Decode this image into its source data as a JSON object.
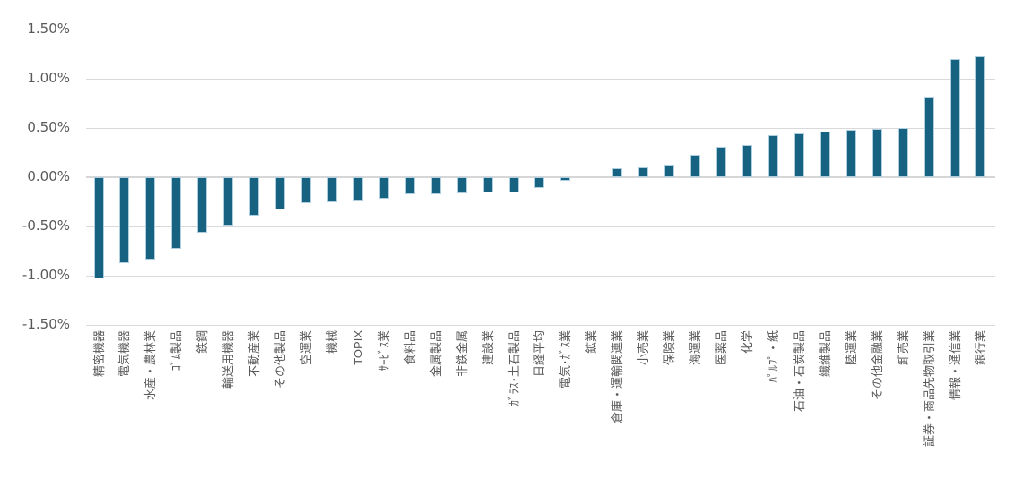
{
  "chart_data": {
    "type": "bar",
    "title": "",
    "xlabel": "",
    "ylabel": "",
    "ylim": [
      -1.5,
      1.5
    ],
    "grid": true,
    "legend": "none",
    "value_unit": "%",
    "yticks": [
      "1.50%",
      "1.00%",
      "0.50%",
      "0.00%",
      "-0.50%",
      "-1.00%",
      "-1.50%"
    ],
    "categories": [
      "精密機器",
      "電気機器",
      "水産・農林業",
      "ｺﾞﾑ製品",
      "鉄鋼",
      "輸送用機器",
      "不動産業",
      "その他製品",
      "空運業",
      "機械",
      "TOPIX",
      "ｻｰﾋﾞｽ業",
      "食料品",
      "金属製品",
      "非鉄金属",
      "建設業",
      "ｶﾞﾗｽ･土石製品",
      "日経平均",
      "電気･ｶﾞｽ業",
      "鉱業",
      "倉庫・運輸関連業",
      "小売業",
      "保険業",
      "海運業",
      "医薬品",
      "化学",
      "ﾊﾟﾙﾌﾟ・紙",
      "石油・石炭製品",
      "繊維製品",
      "陸運業",
      "その他金融業",
      "卸売業",
      "証券・商品先物取引業",
      "情報・通信業",
      "銀行業"
    ],
    "values": [
      -1.03,
      -0.87,
      -0.84,
      -0.73,
      -0.56,
      -0.49,
      -0.39,
      -0.33,
      -0.26,
      -0.25,
      -0.24,
      -0.22,
      -0.17,
      -0.17,
      -0.16,
      -0.15,
      -0.15,
      -0.11,
      -0.04,
      0.0,
      0.09,
      0.1,
      0.13,
      0.23,
      0.31,
      0.33,
      0.43,
      0.45,
      0.46,
      0.48,
      0.49,
      0.5,
      0.82,
      1.2,
      1.23
    ],
    "colors": {
      "bar_fill": "#176181",
      "bar_border": "#bedbe9",
      "axis_text": "#595959",
      "gridline": "#d9d9d9",
      "background": "#ffffff"
    }
  }
}
